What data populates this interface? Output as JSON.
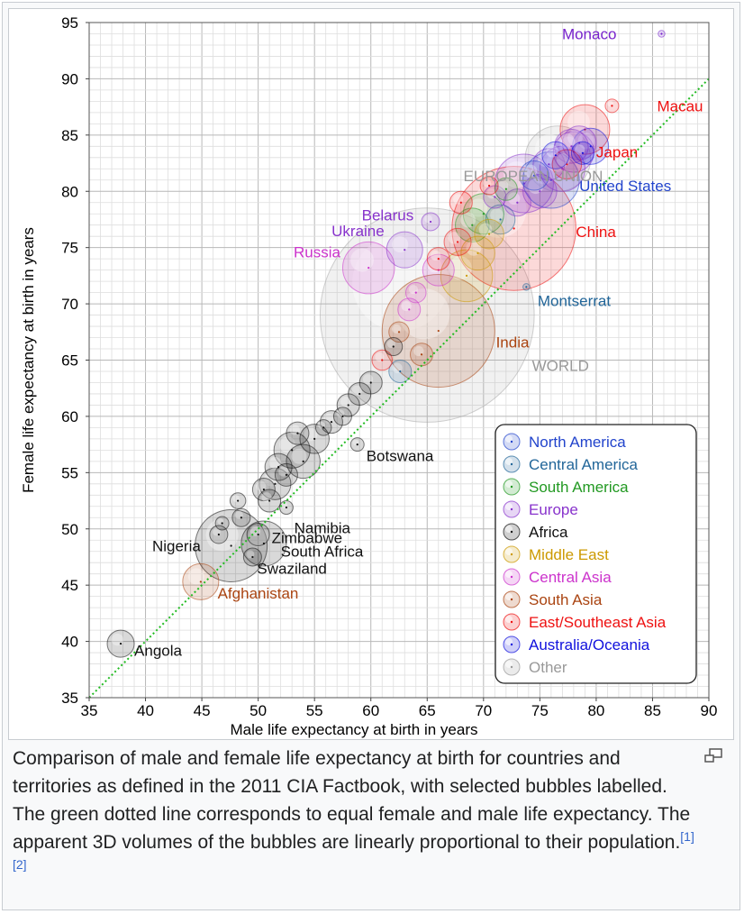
{
  "chart_data": {
    "type": "scatter",
    "title": "",
    "xlabel": "Male life expectancy at birth in years",
    "ylabel": "Female life expectancy at birth in years",
    "xlim": [
      35,
      90
    ],
    "ylim": [
      35,
      95
    ],
    "x_ticks": [
      35,
      40,
      45,
      50,
      55,
      60,
      65,
      70,
      75,
      80,
      85,
      90
    ],
    "y_ticks": [
      35,
      40,
      45,
      50,
      55,
      60,
      65,
      70,
      75,
      80,
      85,
      90,
      95
    ],
    "grid": true,
    "reference_line": {
      "description": "equal female and male life expectancy",
      "from": [
        35,
        35
      ],
      "to": [
        90,
        90
      ],
      "color": "#22bb22"
    },
    "legend_position": "bottom-right",
    "legend": [
      {
        "name": "North America",
        "color": "#2244cc"
      },
      {
        "name": "Central America",
        "color": "#226699"
      },
      {
        "name": "South America",
        "color": "#229922"
      },
      {
        "name": "Europe",
        "color": "#8833cc"
      },
      {
        "name": "Africa",
        "color": "#111111"
      },
      {
        "name": "Middle East",
        "color": "#cc9900"
      },
      {
        "name": "Central Asia",
        "color": "#cc33cc"
      },
      {
        "name": "South Asia",
        "color": "#aa4411"
      },
      {
        "name": "East/Southeast Asia",
        "color": "#ee1111"
      },
      {
        "name": "Australia/Oceania",
        "color": "#1111dd"
      },
      {
        "name": "Other",
        "color": "#999999"
      }
    ],
    "labelled_points": [
      {
        "name": "Monaco",
        "x": 85.8,
        "y": 94.0,
        "r": 0.3,
        "color": "#7722cc",
        "label_color": "#7722cc",
        "anchor": "end",
        "dx": -4,
        "dy": 0
      },
      {
        "name": "Macau",
        "x": 81.4,
        "y": 87.6,
        "r": 0.6,
        "color": "#ee1111",
        "label_color": "#ee1111",
        "anchor": "start",
        "dx": 4,
        "dy": 0
      },
      {
        "name": "Japan",
        "x": 79.0,
        "y": 85.5,
        "r": 2.2,
        "color": "#ee1111",
        "label_color": "#ee1111",
        "anchor": "start",
        "dx": 1,
        "dy": -2
      },
      {
        "name": "EUROPEAN UNION",
        "x": 76.6,
        "y": 82.9,
        "r": 2.9,
        "color": "#aaaaaa",
        "label_color": "#999999",
        "anchor": "end",
        "dx": 4,
        "dy": -1.5
      },
      {
        "name": "United States",
        "x": 76.0,
        "y": 81.0,
        "r": 2.5,
        "color": "#2244cc",
        "label_color": "#2244cc",
        "anchor": "start",
        "dx": 2.5,
        "dy": -0.5
      },
      {
        "name": "Belarus",
        "x": 65.3,
        "y": 77.3,
        "r": 0.8,
        "color": "#8833cc",
        "label_color": "#8833cc",
        "anchor": "end",
        "dx": -1.5,
        "dy": 0.6
      },
      {
        "name": "Ukraine",
        "x": 63.0,
        "y": 74.8,
        "r": 1.6,
        "color": "#8833cc",
        "label_color": "#8833cc",
        "anchor": "end",
        "dx": -1.8,
        "dy": 1.7
      },
      {
        "name": "Russia",
        "x": 59.8,
        "y": 73.2,
        "r": 2.3,
        "color": "#cc33cc",
        "label_color": "#cc33cc",
        "anchor": "end",
        "dx": -2.5,
        "dy": 1.4
      },
      {
        "name": "China",
        "x": 72.7,
        "y": 76.7,
        "r": 5.5,
        "color": "#ee1111",
        "label_color": "#ee1111",
        "anchor": "start",
        "dx": 5.5,
        "dy": -0.3
      },
      {
        "name": "Montserrat",
        "x": 73.8,
        "y": 71.5,
        "r": 0.3,
        "color": "#226699",
        "label_color": "#226699",
        "anchor": "start",
        "dx": 1,
        "dy": -1.2
      },
      {
        "name": "India",
        "x": 66.0,
        "y": 67.6,
        "r": 5.0,
        "color": "#aa4411",
        "label_color": "#aa4411",
        "anchor": "start",
        "dx": 5.1,
        "dy": -1
      },
      {
        "name": "WORLD",
        "x": 65.0,
        "y": 69.0,
        "r": 9.5,
        "color": "#aaaaaa",
        "label_color": "#999999",
        "anchor": "start",
        "dx": 9.3,
        "dy": -4.5
      },
      {
        "name": "Botswana",
        "x": 58.8,
        "y": 57.5,
        "r": 0.6,
        "color": "#111111",
        "label_color": "#111111",
        "anchor": "start",
        "dx": 0.8,
        "dy": -1
      },
      {
        "name": "Namibia",
        "x": 52.5,
        "y": 51.9,
        "r": 0.6,
        "color": "#111111",
        "label_color": "#111111",
        "anchor": "start",
        "dx": 0.7,
        "dy": -1.8
      },
      {
        "name": "Zimbabwe",
        "x": 50.0,
        "y": 49.5,
        "r": 1.0,
        "color": "#111111",
        "label_color": "#111111",
        "anchor": "start",
        "dx": 1.2,
        "dy": -0.3
      },
      {
        "name": "South Africa",
        "x": 50.5,
        "y": 48.7,
        "r": 2.0,
        "color": "#111111",
        "label_color": "#111111",
        "anchor": "start",
        "dx": 1.5,
        "dy": -0.7
      },
      {
        "name": "Swaziland",
        "x": 49.5,
        "y": 47.5,
        "r": 0.8,
        "color": "#111111",
        "label_color": "#111111",
        "anchor": "start",
        "dx": 0.4,
        "dy": -1
      },
      {
        "name": "Nigeria",
        "x": 47.6,
        "y": 48.5,
        "r": 3.2,
        "color": "#111111",
        "label_color": "#111111",
        "anchor": "end",
        "dx": -2.7,
        "dy": 0
      },
      {
        "name": "Afghanistan",
        "x": 44.9,
        "y": 45.3,
        "r": 1.6,
        "color": "#aa4411",
        "label_color": "#aa4411",
        "anchor": "start",
        "dx": 1.5,
        "dy": -1
      },
      {
        "name": "Angola",
        "x": 37.8,
        "y": 39.8,
        "r": 1.2,
        "color": "#111111",
        "label_color": "#111111",
        "anchor": "start",
        "dx": 1.2,
        "dy": -0.6
      }
    ],
    "other_points": [
      {
        "x": 73.6,
        "y": 80.7,
        "r": 2.6,
        "color": "#8833cc"
      },
      {
        "x": 77.0,
        "y": 82.0,
        "r": 2.0,
        "color": "#8833cc"
      },
      {
        "x": 78.0,
        "y": 83.5,
        "r": 1.8,
        "color": "#8833cc"
      },
      {
        "x": 78.5,
        "y": 84.3,
        "r": 1.5,
        "color": "#8833cc"
      },
      {
        "x": 77.8,
        "y": 84.0,
        "r": 1.5,
        "color": "#8833cc"
      },
      {
        "x": 75.8,
        "y": 82.4,
        "r": 1.4,
        "color": "#8833cc"
      },
      {
        "x": 76.4,
        "y": 83.2,
        "r": 1.2,
        "color": "#1111dd"
      },
      {
        "x": 79.5,
        "y": 84.0,
        "r": 1.6,
        "color": "#1111dd"
      },
      {
        "x": 78.8,
        "y": 83.4,
        "r": 1.0,
        "color": "#1111dd"
      },
      {
        "x": 77.4,
        "y": 82.4,
        "r": 1.3,
        "color": "#ee1111"
      },
      {
        "x": 74.5,
        "y": 81.4,
        "r": 1.3,
        "color": "#2244cc"
      },
      {
        "x": 75.0,
        "y": 80.0,
        "r": 1.5,
        "color": "#8833cc"
      },
      {
        "x": 73.0,
        "y": 79.0,
        "r": 1.2,
        "color": "#8833cc"
      },
      {
        "x": 71.0,
        "y": 79.5,
        "r": 1.0,
        "color": "#8833cc"
      },
      {
        "x": 72.0,
        "y": 80.2,
        "r": 1.0,
        "color": "#229922"
      },
      {
        "x": 70.0,
        "y": 78.0,
        "r": 1.8,
        "color": "#229922"
      },
      {
        "x": 69.0,
        "y": 77.0,
        "r": 1.5,
        "color": "#229922"
      },
      {
        "x": 71.5,
        "y": 77.5,
        "r": 1.3,
        "color": "#226699"
      },
      {
        "x": 70.5,
        "y": 76.2,
        "r": 1.3,
        "color": "#cc9900"
      },
      {
        "x": 69.5,
        "y": 74.5,
        "r": 1.5,
        "color": "#cc9900"
      },
      {
        "x": 68.5,
        "y": 72.5,
        "r": 2.3,
        "color": "#cc9900"
      },
      {
        "x": 67.7,
        "y": 75.5,
        "r": 1.2,
        "color": "#ee1111"
      },
      {
        "x": 68.0,
        "y": 79.0,
        "r": 1.0,
        "color": "#ee1111"
      },
      {
        "x": 70.5,
        "y": 80.5,
        "r": 0.8,
        "color": "#ee1111"
      },
      {
        "x": 66.0,
        "y": 74.0,
        "r": 1.0,
        "color": "#ee1111"
      },
      {
        "x": 66.0,
        "y": 73.0,
        "r": 1.4,
        "color": "#cc33cc"
      },
      {
        "x": 64.0,
        "y": 71.0,
        "r": 0.9,
        "color": "#cc33cc"
      },
      {
        "x": 63.4,
        "y": 69.5,
        "r": 1.0,
        "color": "#cc33cc"
      },
      {
        "x": 62.5,
        "y": 67.5,
        "r": 0.9,
        "color": "#aa4411"
      },
      {
        "x": 64.5,
        "y": 65.5,
        "r": 1.0,
        "color": "#aa4411"
      },
      {
        "x": 61.0,
        "y": 65.0,
        "r": 0.9,
        "color": "#ee1111"
      },
      {
        "x": 62.0,
        "y": 66.2,
        "r": 0.8,
        "color": "#111111"
      },
      {
        "x": 62.6,
        "y": 64.0,
        "r": 1.0,
        "color": "#226699"
      },
      {
        "x": 60.0,
        "y": 63.0,
        "r": 1.0,
        "color": "#111111"
      },
      {
        "x": 59.0,
        "y": 62.0,
        "r": 1.0,
        "color": "#111111"
      },
      {
        "x": 58.0,
        "y": 61.0,
        "r": 1.0,
        "color": "#111111"
      },
      {
        "x": 56.5,
        "y": 59.5,
        "r": 1.0,
        "color": "#111111"
      },
      {
        "x": 55.0,
        "y": 58.0,
        "r": 1.3,
        "color": "#111111"
      },
      {
        "x": 53.5,
        "y": 58.5,
        "r": 1.0,
        "color": "#111111"
      },
      {
        "x": 53.0,
        "y": 57.0,
        "r": 1.6,
        "color": "#111111"
      },
      {
        "x": 54.0,
        "y": 56.0,
        "r": 1.5,
        "color": "#111111"
      },
      {
        "x": 51.8,
        "y": 55.5,
        "r": 1.2,
        "color": "#111111"
      },
      {
        "x": 51.5,
        "y": 54.0,
        "r": 1.4,
        "color": "#111111"
      },
      {
        "x": 52.5,
        "y": 54.8,
        "r": 1.0,
        "color": "#111111"
      },
      {
        "x": 50.5,
        "y": 53.5,
        "r": 1.0,
        "color": "#111111"
      },
      {
        "x": 51.0,
        "y": 52.5,
        "r": 1.0,
        "color": "#111111"
      },
      {
        "x": 48.5,
        "y": 51.0,
        "r": 0.8,
        "color": "#111111"
      },
      {
        "x": 48.2,
        "y": 52.5,
        "r": 0.7,
        "color": "#111111"
      },
      {
        "x": 46.8,
        "y": 50.5,
        "r": 0.6,
        "color": "#111111"
      },
      {
        "x": 46.5,
        "y": 49.5,
        "r": 0.8,
        "color": "#111111"
      },
      {
        "x": 57.5,
        "y": 60.0,
        "r": 0.8,
        "color": "#111111"
      },
      {
        "x": 55.8,
        "y": 59.0,
        "r": 0.7,
        "color": "#111111"
      }
    ]
  },
  "caption": {
    "text": "Comparison of male and female life expectancy at birth for countries and territories as defined in the 2011 CIA Factbook, with selected bubbles labelled. The green dotted line corresponds to equal female and male life expectancy. The apparent 3D volumes of the bubbles are linearly proportional to their population.",
    "ref1": "[1]",
    "ref2": "[2]"
  }
}
